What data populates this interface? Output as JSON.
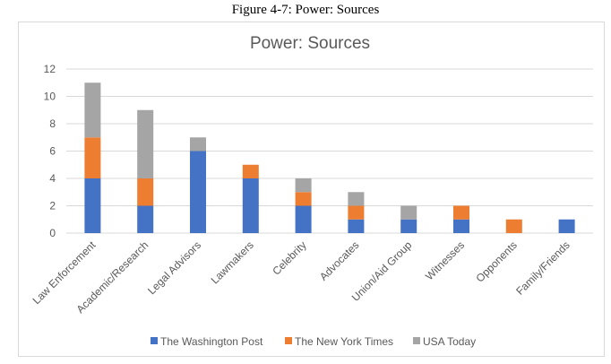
{
  "figure_caption": "Figure 4-7: Power: Sources",
  "chart_data": {
    "type": "bar",
    "stacked": true,
    "title": "Power: Sources",
    "xlabel": "",
    "ylabel": "",
    "ylim": [
      0,
      12
    ],
    "yticks": [
      0,
      2,
      4,
      6,
      8,
      10,
      12
    ],
    "grid": true,
    "legend_position": "bottom",
    "categories": [
      "Law Enforcement",
      "Academic/Research",
      "Legal Advisors",
      "Lawmakers",
      "Celebrity",
      "Advocates",
      "Union/Aid Group",
      "Witnesses",
      "Opponents",
      "Family/Friends"
    ],
    "series": [
      {
        "name": "The Washington Post",
        "color": "#4472c4",
        "values": [
          4,
          2,
          6,
          4,
          2,
          1,
          1,
          1,
          0,
          1
        ]
      },
      {
        "name": "The New York Times",
        "color": "#ed7d31",
        "values": [
          3,
          2,
          0,
          1,
          1,
          1,
          0,
          1,
          1,
          0
        ]
      },
      {
        "name": "USA Today",
        "color": "#a5a5a5",
        "values": [
          4,
          5,
          1,
          0,
          1,
          1,
          1,
          0,
          0,
          0
        ]
      }
    ]
  }
}
